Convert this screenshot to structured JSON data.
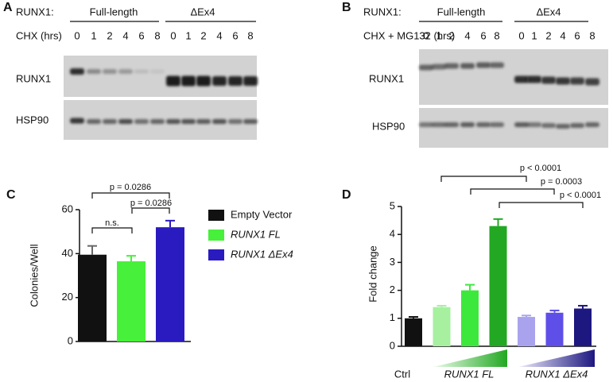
{
  "blots": [
    {
      "label": "A",
      "construct_label": "RUNX1:",
      "groups": [
        "Full-length",
        "ΔEx4"
      ],
      "treatment": "CHX (hrs)",
      "lanes": [
        "0",
        "1",
        "2",
        "4",
        "6",
        "8",
        "0",
        "1",
        "2",
        "4",
        "6",
        "8"
      ],
      "rows": [
        "RUNX1",
        "HSP90"
      ]
    },
    {
      "label": "B",
      "construct_label": "RUNX1:",
      "groups": [
        "Full-length",
        "ΔEx4"
      ],
      "treatment": "CHX + MG132 (hrs)",
      "lanes": [
        "0",
        "1",
        "2",
        "4",
        "6",
        "8",
        "0",
        "1",
        "2",
        "4",
        "6",
        "8"
      ],
      "rows": [
        "RUNX1",
        "HSP90"
      ]
    }
  ],
  "chart_data": [
    {
      "type": "bar",
      "label": "C",
      "ylabel": "Colonies/Well",
      "ylim": [
        0,
        60
      ],
      "yticks": [
        0,
        20,
        40,
        60
      ],
      "series": [
        {
          "name": "Empty Vector",
          "color": "#111111",
          "values": [
            39.5
          ],
          "errors": [
            4
          ]
        },
        {
          "name": "RUNX1 FL",
          "color": "#47f03a",
          "values": [
            36.5
          ],
          "errors": [
            2.5
          ]
        },
        {
          "name": "RUNX1 ΔEx4",
          "color": "#2a1bc0",
          "values": [
            52
          ],
          "errors": [
            3
          ]
        }
      ],
      "annotations": [
        "p = 0.0286",
        "n.s.",
        "p = 0.0286"
      ]
    },
    {
      "type": "bar",
      "label": "D",
      "ylabel": "Fold change",
      "ylim": [
        0,
        5
      ],
      "yticks": [
        0,
        1,
        2,
        3,
        4,
        5
      ],
      "categories": [
        "Ctrl",
        null,
        null,
        null,
        null,
        null,
        null
      ],
      "groups": [
        "RUNX1 FL",
        "RUNX1 ΔEx4"
      ],
      "values": [
        1.0,
        1.4,
        2.0,
        4.3,
        1.05,
        1.2,
        1.35
      ],
      "errors": [
        0.05,
        0.05,
        0.2,
        0.25,
        0.05,
        0.08,
        0.1
      ],
      "colors": [
        "#111111",
        "#a6f0a0",
        "#3de83d",
        "#22a822",
        "#a9a3ee",
        "#5e4fe8",
        "#1d1780"
      ],
      "annotations": [
        "p < 0.0001",
        "p = 0.0003",
        "p < 0.0001"
      ]
    }
  ]
}
